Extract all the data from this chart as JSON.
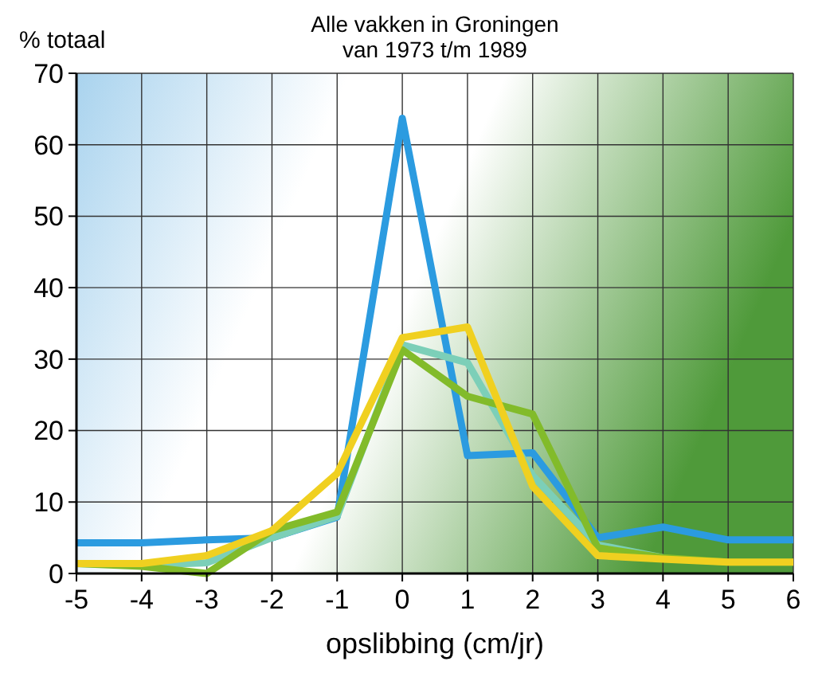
{
  "chart_data": {
    "type": "line",
    "title": "Alle vakken in Groningen\nvan 1973 t/m 1989",
    "xlabel": "opslibbing (cm/jr)",
    "ylabel": "% totaal",
    "x": [
      -5,
      -4,
      -3,
      -2,
      -1,
      0,
      1,
      2,
      3,
      4,
      5,
      6
    ],
    "series": [
      {
        "color": "#2b9be0",
        "values": [
          4.3,
          4.3,
          4.7,
          5,
          7.9,
          63.7,
          16.5,
          16.9,
          5,
          6.5,
          4.7,
          4.7
        ]
      },
      {
        "color": "#7ccfb8",
        "values": [
          1.4,
          1.2,
          1.5,
          5,
          8,
          32,
          29.5,
          13.7,
          4,
          2.2,
          null,
          null
        ]
      },
      {
        "color": "#82bb2a",
        "values": [
          1.4,
          1,
          0,
          6,
          8.6,
          31.3,
          24.8,
          22.3,
          3.6,
          2.2,
          1.6,
          1.6
        ]
      },
      {
        "color": "#f0d020",
        "values": [
          1.4,
          1.4,
          2.5,
          6,
          14,
          33,
          34.5,
          12.2,
          2.5,
          2,
          1.6,
          1.6
        ]
      }
    ],
    "xlim": [
      -5,
      6
    ],
    "xticks": [
      -5,
      -4,
      -3,
      -2,
      -1,
      0,
      1,
      2,
      3,
      4,
      5,
      6
    ],
    "ylim": [
      0,
      70
    ],
    "yticks": [
      0,
      10,
      20,
      30,
      40,
      50,
      60,
      70
    ],
    "grid": true
  }
}
